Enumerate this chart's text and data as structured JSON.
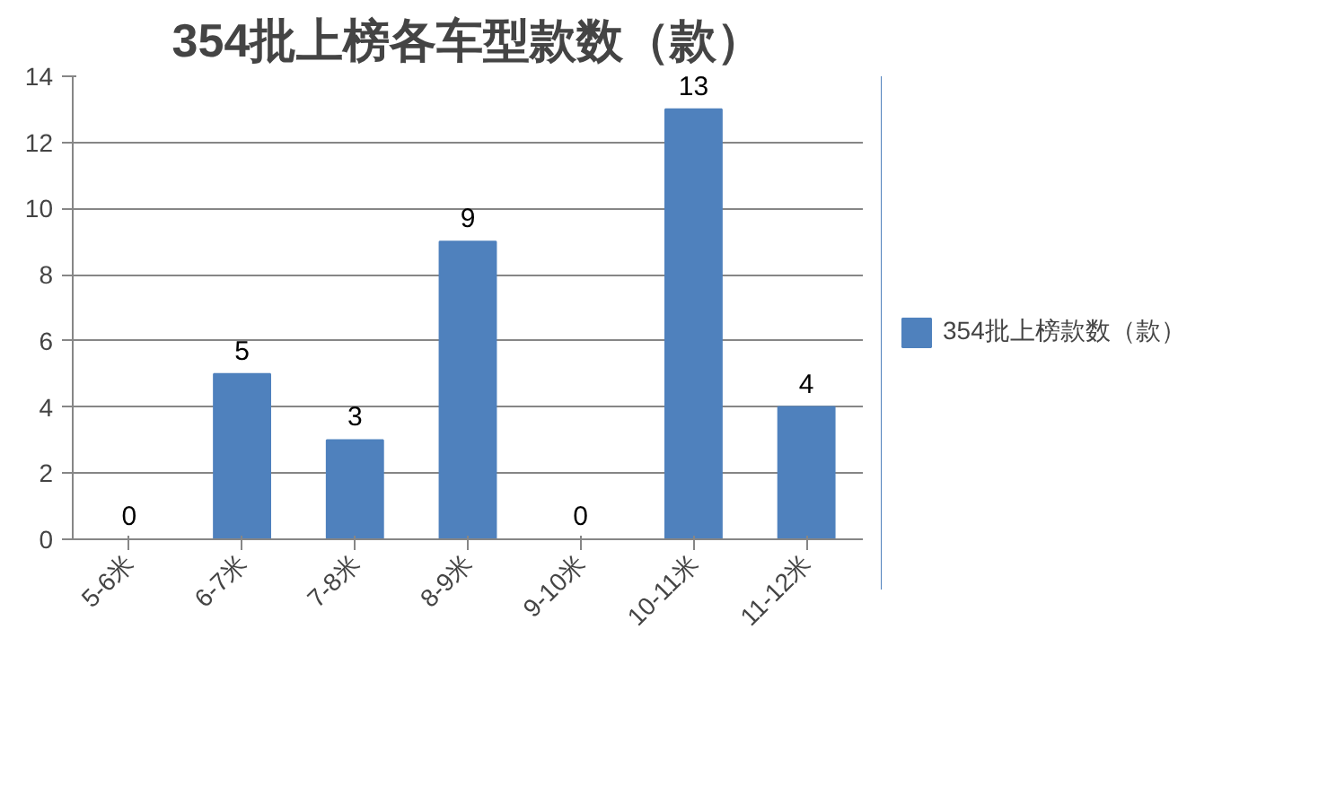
{
  "chart_data": {
    "type": "bar",
    "title": "354批上榜各车型款数（款）",
    "categories": [
      "5-6米",
      "6-7米",
      "7-8米",
      "8-9米",
      "9-10米",
      "10-11米",
      "11-12米"
    ],
    "series": [
      {
        "name": "354批上榜款数（款）",
        "color": "#4f81bd",
        "values": [
          0,
          5,
          3,
          9,
          0,
          13,
          4
        ]
      }
    ],
    "ylim": [
      0,
      14
    ],
    "yticks": [
      0,
      2,
      4,
      6,
      8,
      10,
      12,
      14
    ],
    "grid": "y",
    "legend": "right",
    "data_labels": true
  }
}
